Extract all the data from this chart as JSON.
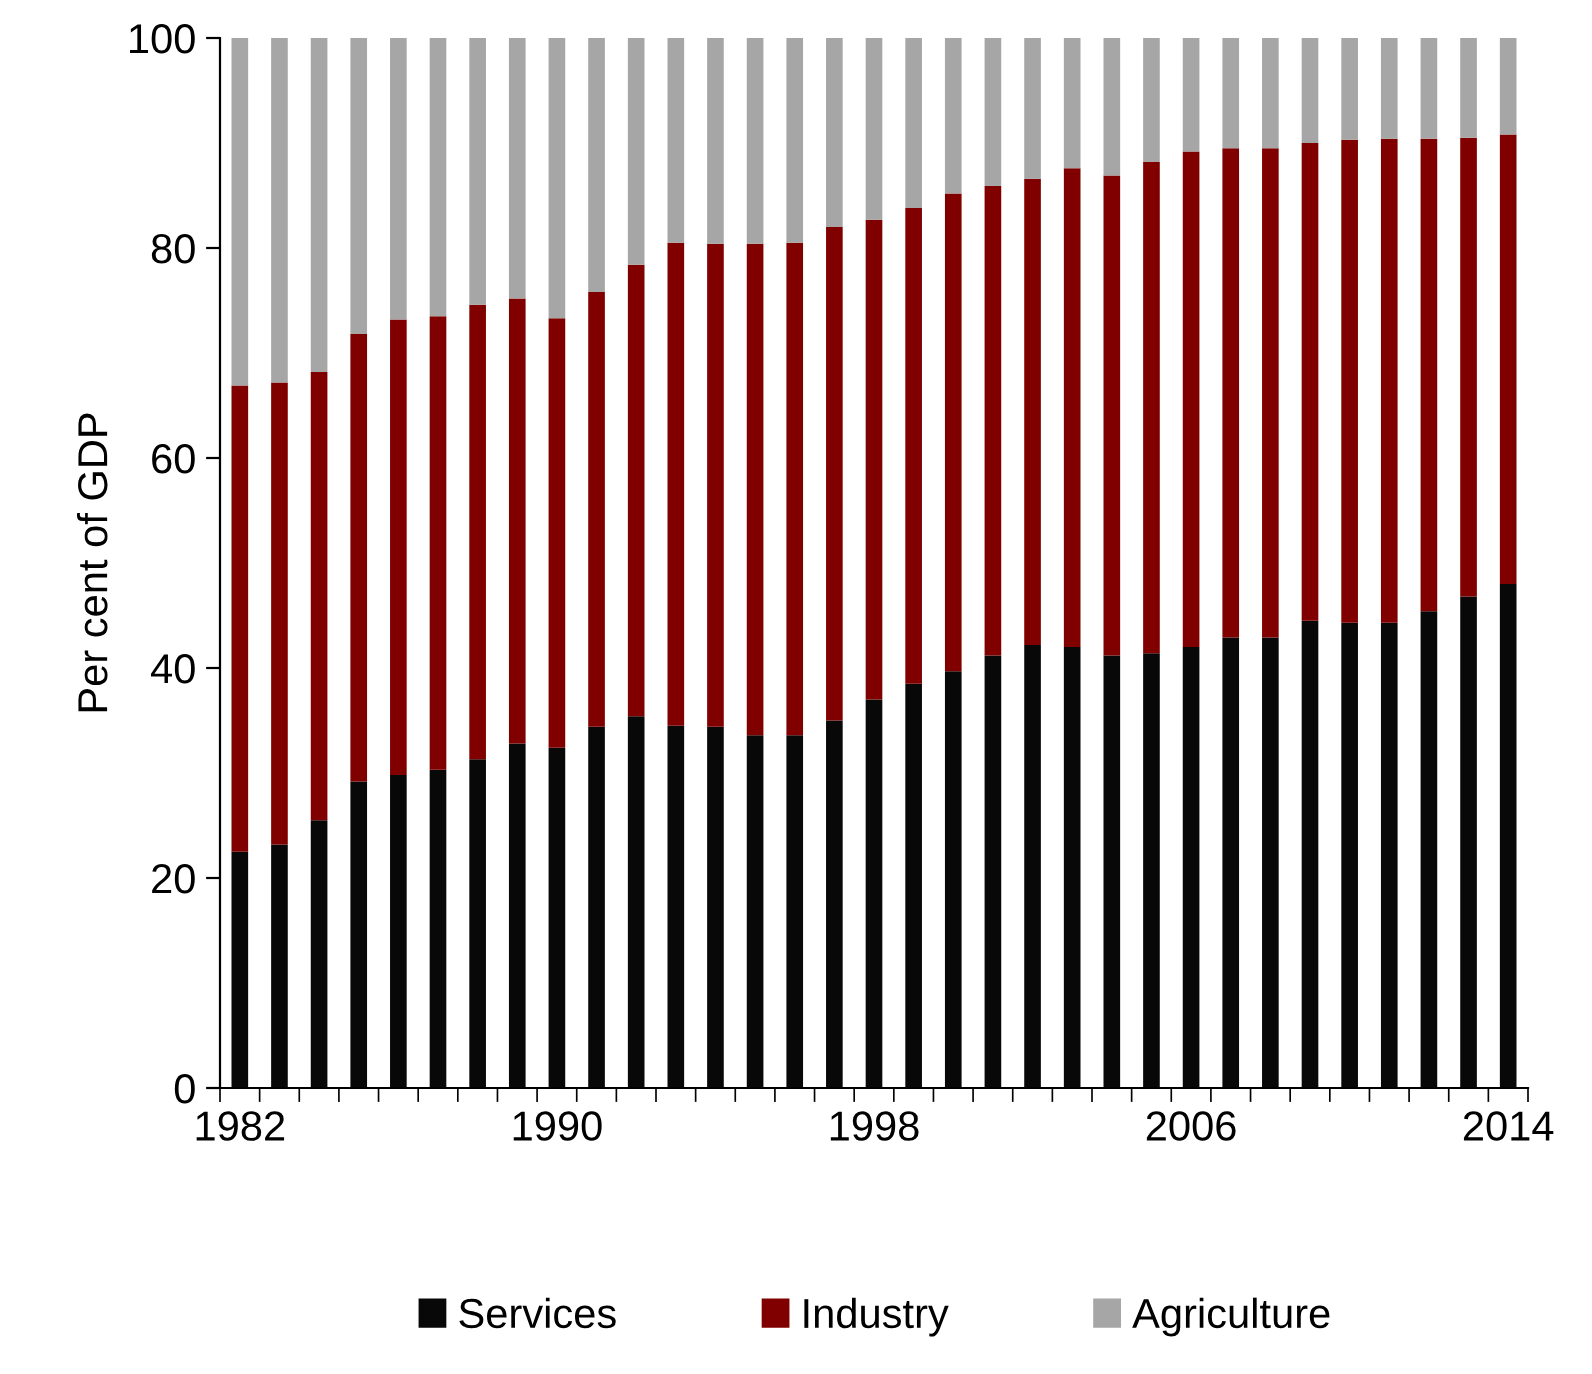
{
  "chart_data": {
    "type": "bar",
    "stacked": true,
    "ylabel": "Per cent of GDP",
    "categories": [
      "1982",
      null,
      null,
      null,
      null,
      null,
      null,
      null,
      "1990",
      null,
      null,
      null,
      null,
      null,
      null,
      null,
      "1998",
      null,
      null,
      null,
      null,
      null,
      null,
      null,
      "2006",
      null,
      null,
      null,
      null,
      null,
      null,
      null,
      "2014"
    ],
    "series": [
      {
        "name": "Services",
        "color": "#080808",
        "values": [
          22.5,
          23.2,
          25.5,
          29.2,
          29.8,
          30.3,
          31.3,
          32.8,
          32.4,
          34.4,
          35.4,
          34.5,
          34.4,
          33.6,
          33.6,
          35.0,
          37.0,
          38.5,
          39.7,
          41.2,
          42.2,
          42.0,
          41.2,
          41.4,
          42.0,
          42.9,
          42.9,
          44.5,
          44.3,
          44.3,
          45.4,
          46.8,
          48.0
        ]
      },
      {
        "name": "Industry",
        "color": "#800000",
        "values": [
          44.4,
          44.0,
          42.7,
          42.6,
          43.4,
          43.2,
          43.3,
          42.4,
          40.9,
          41.4,
          43.0,
          46.0,
          46.0,
          46.8,
          46.9,
          47.0,
          45.7,
          45.3,
          45.5,
          44.7,
          44.4,
          45.6,
          45.7,
          46.8,
          47.2,
          46.6,
          46.6,
          45.5,
          46.0,
          46.1,
          45.0,
          43.7,
          42.8
        ]
      },
      {
        "name": "Agriculture",
        "color": "#a6a6a6",
        "values": [
          33.1,
          32.8,
          31.8,
          28.2,
          26.8,
          26.5,
          25.4,
          24.8,
          26.7,
          24.2,
          21.6,
          19.5,
          19.6,
          19.6,
          19.5,
          18.0,
          17.3,
          16.2,
          14.8,
          14.1,
          13.4,
          12.4,
          13.1,
          11.8,
          10.8,
          10.5,
          10.5,
          10.0,
          9.7,
          9.6,
          9.6,
          9.5,
          9.2
        ]
      }
    ],
    "ylim": [
      0,
      100
    ],
    "yticks": [
      0,
      20,
      40,
      60,
      80,
      100
    ],
    "grid": false,
    "legend": "bottom"
  }
}
